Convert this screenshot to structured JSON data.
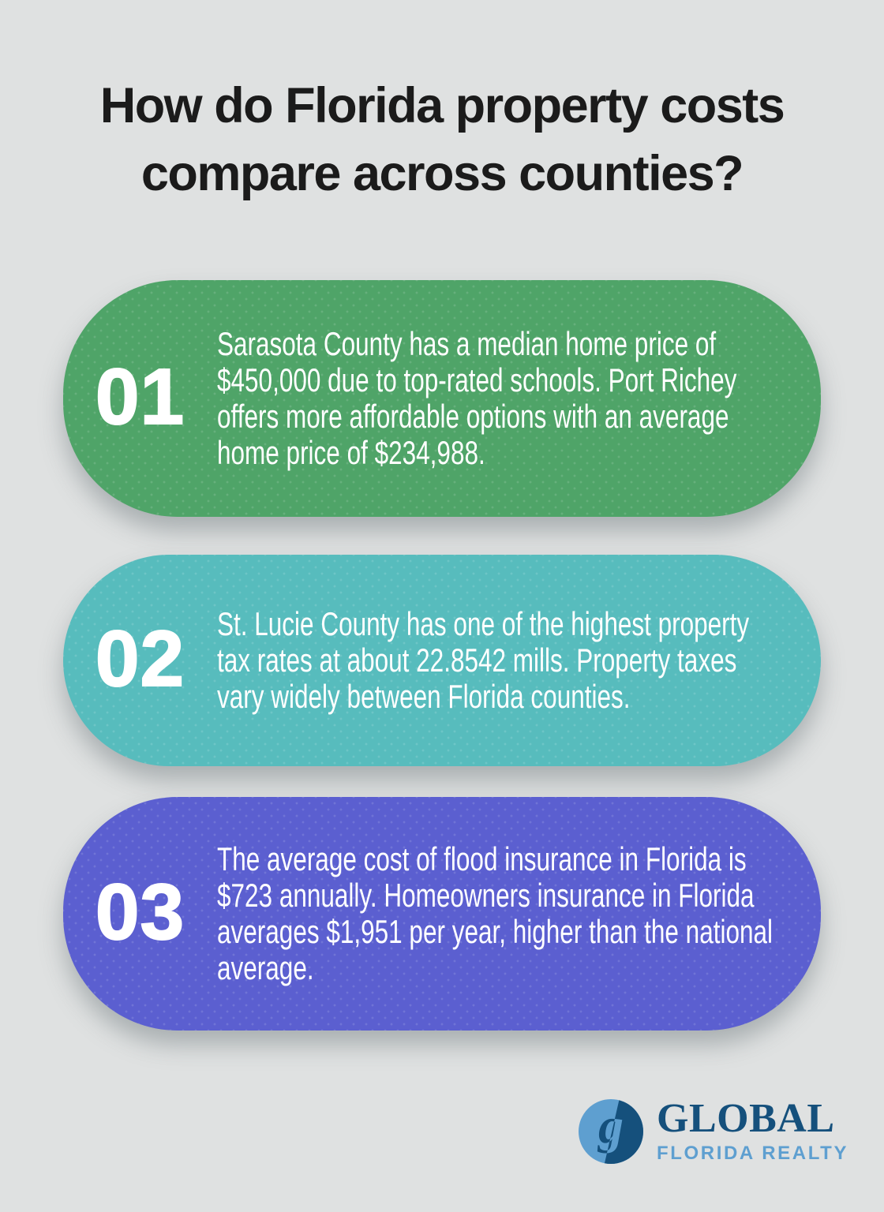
{
  "page": {
    "background_color": "#dfe1e1",
    "title": {
      "lines": [
        "How do Florida property costs",
        "compare across counties?"
      ],
      "color": "#1b1b1b"
    }
  },
  "facts": [
    {
      "number": "01",
      "card_color": "#4fa468",
      "text_color": "#ffffff",
      "text": "Sarasota County has a median home price of $450,000 due to top-rated schools. Port Richey offers more affordable options with an average home price of $234,988."
    },
    {
      "number": "02",
      "card_color": "#57bcbd",
      "text_color": "#ffffff",
      "text": "St. Lucie County has one of the highest property tax rates at about 22.8542 mills. Property taxes vary widely between Florida counties."
    },
    {
      "number": "03",
      "card_color": "#5b5fd0",
      "text_color": "#ffffff",
      "text": "The average cost of flood insurance in Florida is $723 annually. Homeowners insurance in Florida averages $1,951 per year, higher than the national average."
    }
  ],
  "logo": {
    "monogram": "g",
    "brand": "GLOBAL",
    "tagline": "FLORIDA REALTY",
    "dark_blue": "#15507c",
    "light_blue": "#5e9fd0"
  }
}
